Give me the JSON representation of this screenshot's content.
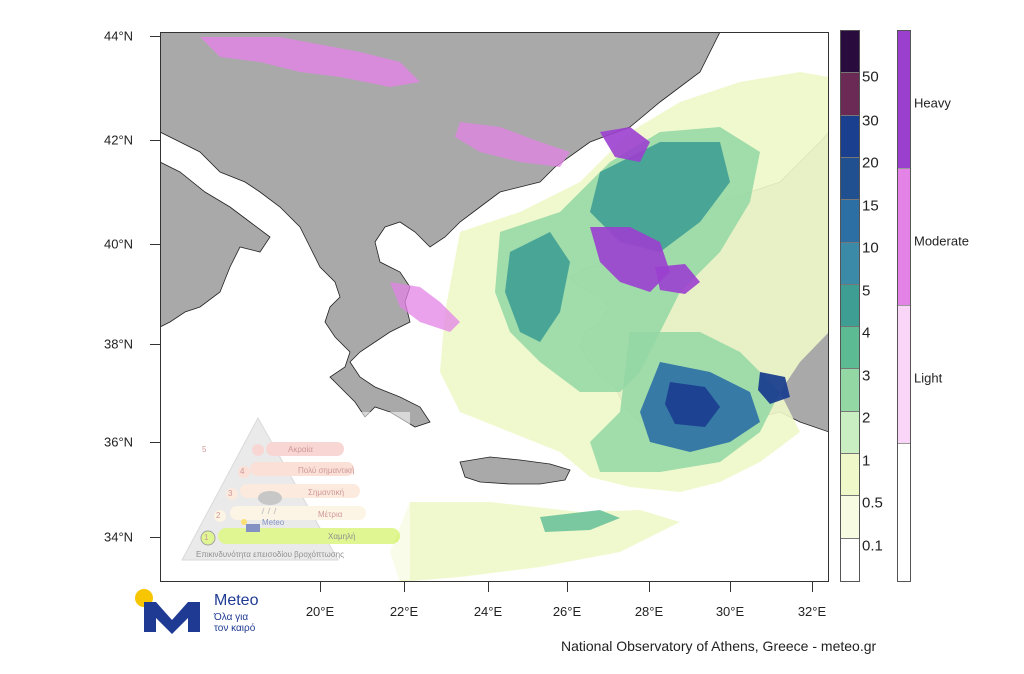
{
  "map": {
    "lat_labels": [
      "44°N",
      "42°N",
      "40°N",
      "38°N",
      "36°N",
      "34°N"
    ],
    "lon_labels": [
      "20°E",
      "22°E",
      "24°E",
      "26°E",
      "28°E",
      "30°E",
      "32°E"
    ]
  },
  "amount_scale": {
    "labels": [
      "50",
      "30",
      "20",
      "15",
      "10",
      "5",
      "4",
      "3",
      "2",
      "1",
      "0.5",
      "0.1"
    ],
    "colors": [
      "#2a0b3d",
      "#6b2a55",
      "#1b3f8f",
      "#20508f",
      "#2b6fa5",
      "#3a8aa8",
      "#3f9e94",
      "#5cbb93",
      "#93d7a5",
      "#c9eec2",
      "#eef8c8",
      "#f6fbe2",
      "#ffffff"
    ]
  },
  "intensity_scale": {
    "labels": [
      "Heavy",
      "Moderate",
      "Light"
    ],
    "colors": [
      "#9b3fcf",
      "#e483e6",
      "#fbd5f7",
      "#ffffff"
    ]
  },
  "logo": {
    "name": "Meteo",
    "tagline_1": "Όλα για",
    "tagline_2": "τον καιρό",
    "colors": {
      "blue": "#1f3a93",
      "yellow": "#f7c600"
    }
  },
  "pyramid": {
    "levels": [
      "5",
      "4",
      "3",
      "2",
      "1"
    ],
    "labels": [
      "Ακραία",
      "Πολύ σημαντική",
      "Σημαντική",
      "Μέτρια",
      "Χαμηλή"
    ],
    "caption": "Επικινδυνότητα επεισοδίου βροχόπτωσης",
    "logo_name": "Meteo"
  },
  "credit": "National Observatory of Athens, Greece - meteo.gr"
}
